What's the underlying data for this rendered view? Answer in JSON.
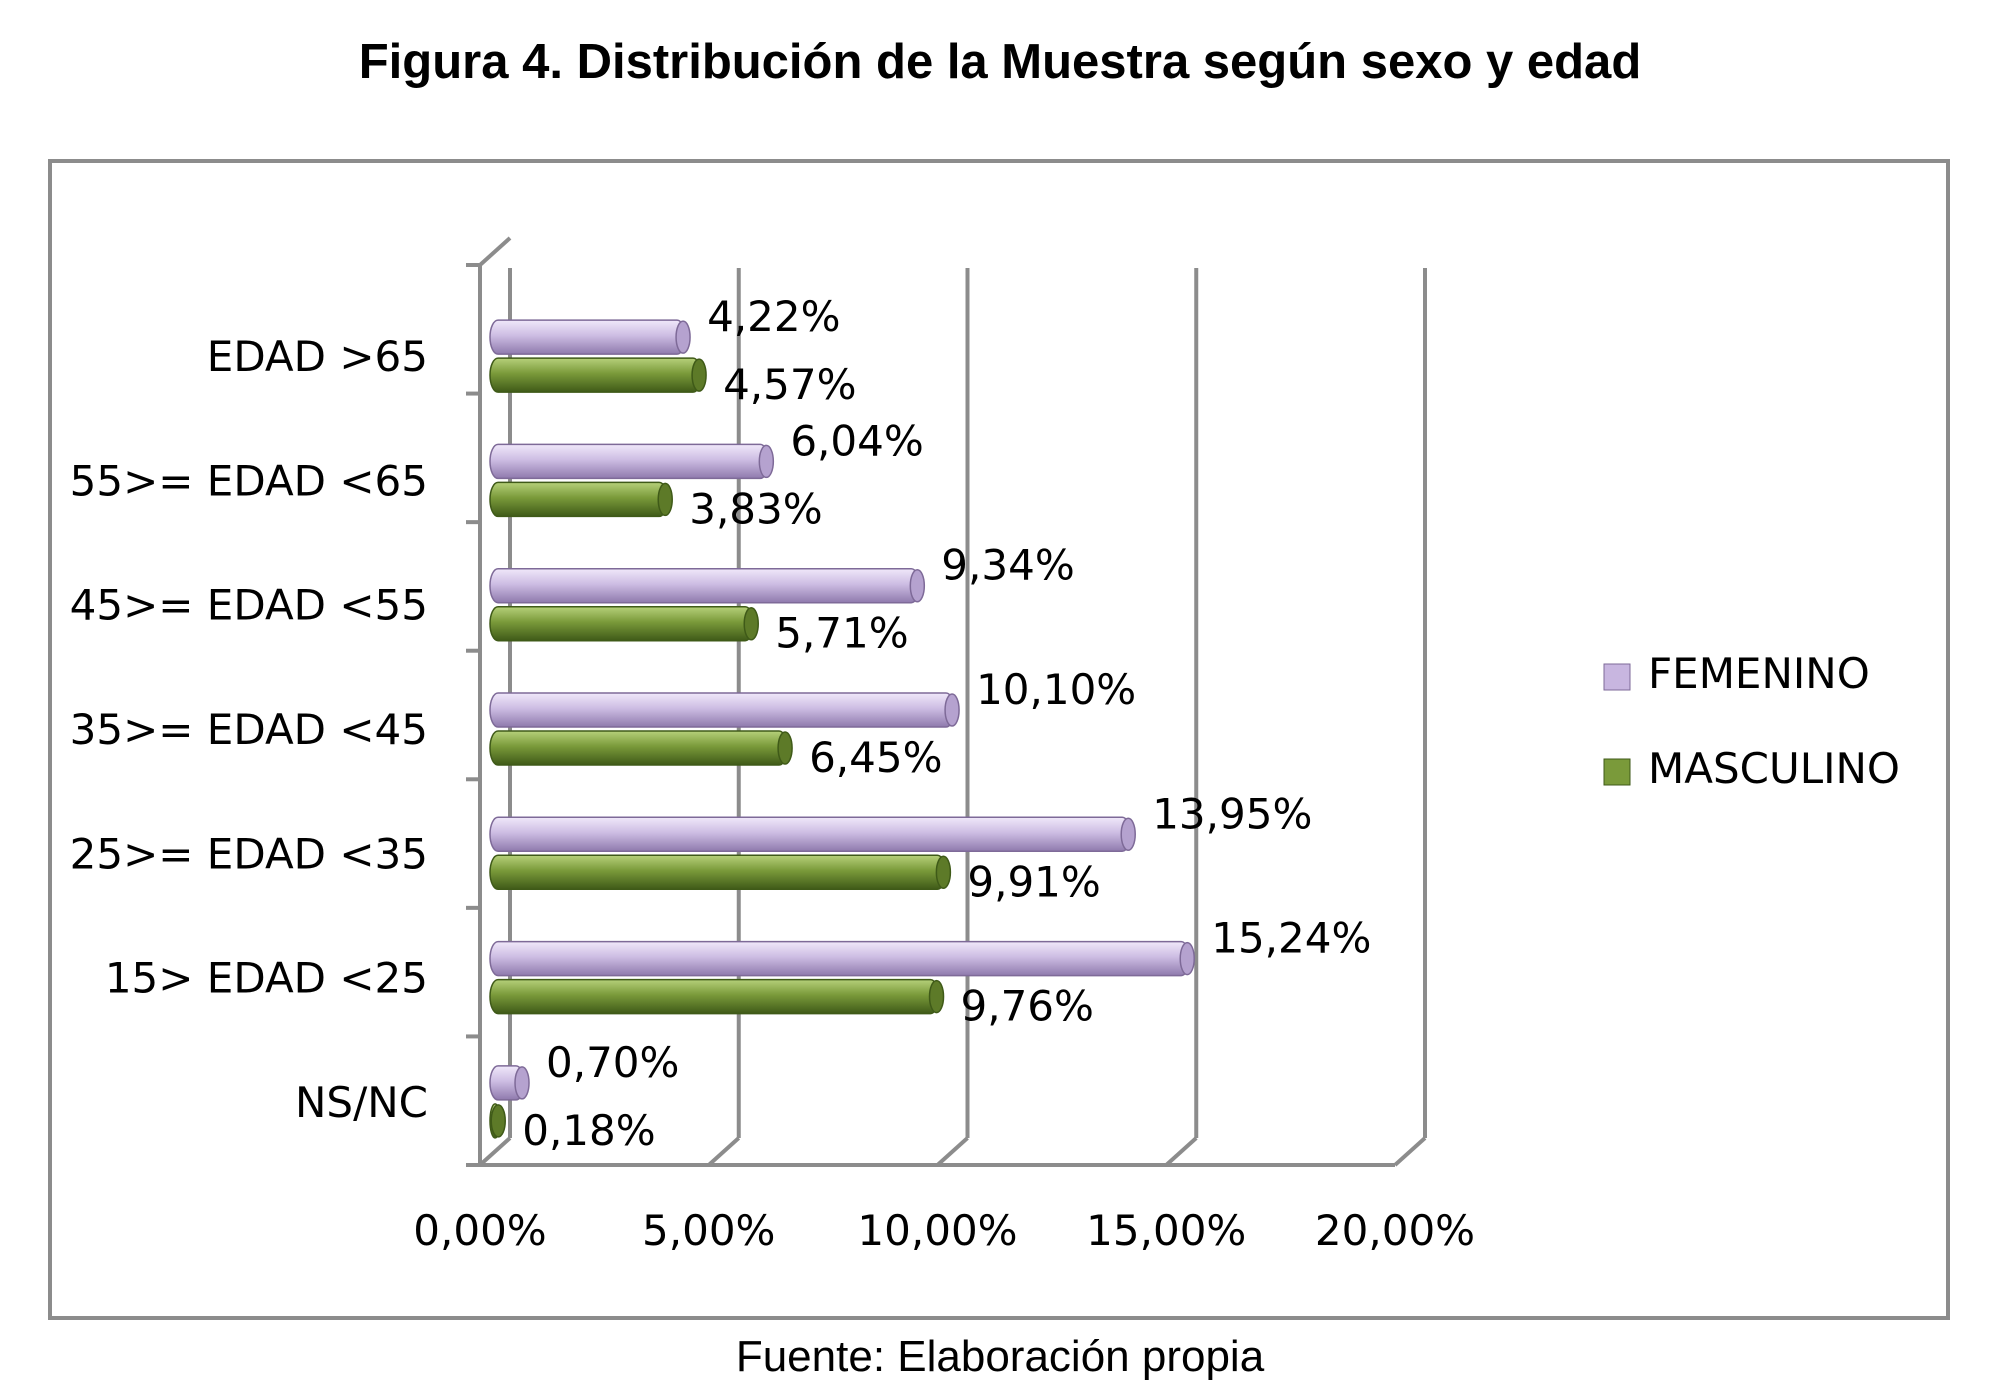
{
  "title": "Figura 4. Distribución de la Muestra según sexo y edad",
  "source": "Fuente: Elaboración propia",
  "chart_data": {
    "type": "bar",
    "orientation": "horizontal",
    "style": "3d-cylinder",
    "categories": [
      "EDAD >65",
      "55>= EDAD <65",
      "45>= EDAD <55",
      "35>= EDAD <45",
      "25>= EDAD <35",
      "15> EDAD <25",
      "NS/NC"
    ],
    "series": [
      {
        "name": "FEMENINO",
        "color": "#c8b6e0",
        "values": [
          4.22,
          6.04,
          9.34,
          10.1,
          13.95,
          15.24,
          0.7
        ],
        "labels": [
          "4,22%",
          "6,04%",
          "9,34%",
          "10,10%",
          "13,95%",
          "15,24%",
          "0,70%"
        ]
      },
      {
        "name": "MASCULINO",
        "color": "#7a9a3a",
        "values": [
          4.57,
          3.83,
          5.71,
          6.45,
          9.91,
          9.76,
          0.18
        ],
        "labels": [
          "4,57%",
          "3,83%",
          "5,71%",
          "6,45%",
          "9,91%",
          "9,76%",
          "0,18%"
        ]
      }
    ],
    "xlim": [
      0,
      20
    ],
    "xticks": [
      "0,00%",
      "5,00%",
      "10,00%",
      "15,00%",
      "20,00%"
    ],
    "grid": true,
    "legend_position": "right"
  }
}
